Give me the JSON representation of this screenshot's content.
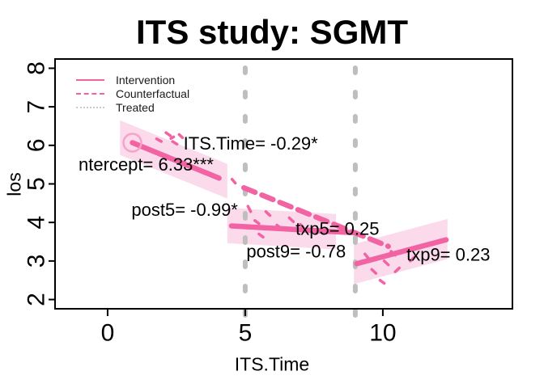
{
  "title": "ITS study: SGMT",
  "colors": {
    "line_pink": "#F263A4",
    "band_pink": "#FBD7E9",
    "circle_pink": "#F6A2C9",
    "vline_gray": "#BEBEBE",
    "legend_dotted_gray": "#C9C9C9",
    "text": "#000000",
    "axis": "#000000"
  },
  "legend": {
    "items": [
      {
        "label": "Intervention",
        "style": "solid",
        "color": "#F263A4"
      },
      {
        "label": "Counterfactual",
        "style": "dashed",
        "color": "#F263A4"
      },
      {
        "label": "Treated",
        "style": "dotted",
        "color": "#C9C9C9"
      }
    ]
  },
  "chart_data": {
    "type": "line",
    "title": "ITS study: SGMT",
    "xlabel": "ITS.Time",
    "ylabel": "los",
    "x_axis": {
      "ticks": [
        0,
        5,
        10
      ],
      "range": [
        -1.91,
        14.71
      ]
    },
    "y_axis": {
      "ticks": [
        2,
        3,
        4,
        5,
        6,
        7,
        8
      ],
      "range": [
        1.76,
        8.24
      ]
    },
    "interruptions": [
      5,
      9
    ],
    "model_coefficients": {
      "intercept": 6.33,
      "ITS.Time": -0.29,
      "post5": -0.99,
      "txp5": 0.25,
      "post9": -0.78,
      "txp9": 0.23
    },
    "fitted_segments": [
      {
        "name": "pre-intervention",
        "style": "solid",
        "x": [
          0.9,
          4.05
        ],
        "y": [
          6.07,
          5.15
        ]
      },
      {
        "name": "counterfactual",
        "style": "dashed",
        "x": [
          4.95,
          10.2
        ],
        "y": [
          4.9,
          3.38
        ]
      },
      {
        "name": "post5-segment",
        "style": "solid",
        "x": [
          4.5,
          9.0
        ],
        "y": [
          3.91,
          3.73
        ]
      },
      {
        "name": "post9-segment",
        "style": "solid",
        "x": [
          9.05,
          12.3
        ],
        "y": [
          2.93,
          3.55
        ]
      }
    ],
    "bands": [
      {
        "x": [
          0.45,
          4.35
        ],
        "y": [
          6.2,
          5.07
        ],
        "half_width": 0.45
      },
      {
        "x": [
          4.35,
          8.3
        ],
        "y": [
          3.92,
          3.76
        ],
        "half_width": 0.46
      },
      {
        "x": [
          8.95,
          12.35
        ],
        "y": [
          2.92,
          3.57
        ],
        "half_width": 0.52
      }
    ],
    "start_marker": {
      "x": 0.9,
      "y": 6.07,
      "shape": "open-circle"
    },
    "treated_marks": [
      [
        1.78,
        6.17,
        1.95,
        6.1
      ],
      [
        2.12,
        6.33,
        2.28,
        6.25
      ],
      [
        2.36,
        6.1,
        2.52,
        6.03
      ],
      [
        2.6,
        6.28,
        2.72,
        6.2
      ],
      [
        2.3,
        6.18,
        2.4,
        6.22
      ],
      [
        4.52,
        5.12,
        4.64,
        5.02
      ],
      [
        5.1,
        4.42,
        5.2,
        4.28
      ],
      [
        5.35,
        4.05,
        5.5,
        3.97
      ],
      [
        5.75,
        4.28,
        5.9,
        4.18
      ],
      [
        6.15,
        3.93,
        6.3,
        3.85
      ],
      [
        6.6,
        4.12,
        6.75,
        4.02
      ],
      [
        5.5,
        3.7,
        5.65,
        3.62
      ],
      [
        7.0,
        3.95,
        7.1,
        3.88
      ],
      [
        7.45,
        3.8,
        7.6,
        3.72
      ],
      [
        9.35,
        3.18,
        9.5,
        3.05
      ],
      [
        9.6,
        2.78,
        9.75,
        2.68
      ],
      [
        10.05,
        3.0,
        10.2,
        2.9
      ],
      [
        10.45,
        2.72,
        10.6,
        2.82
      ],
      [
        9.9,
        2.5,
        10.05,
        2.42
      ],
      [
        10.3,
        3.25,
        10.45,
        3.15
      ],
      [
        11.0,
        3.0,
        11.15,
        3.1
      ]
    ],
    "annotations": [
      {
        "id": "intercept",
        "text": "ntercept= 6.33***",
        "x": 1.4,
        "y": 5.5
      },
      {
        "id": "its-time",
        "text": "ITS.Time= -0.29*",
        "x": 5.2,
        "y": 6.05
      },
      {
        "id": "post5",
        "text": "post5= -0.99*",
        "x": 2.8,
        "y": 4.33
      },
      {
        "id": "txp5",
        "text": "txp5= 0.25",
        "x": 8.35,
        "y": 3.84
      },
      {
        "id": "post9",
        "text": "post9= -0.78",
        "x": 6.85,
        "y": 3.25
      },
      {
        "id": "txp9",
        "text": "txp9= 0.23",
        "x": 12.38,
        "y": 3.17
      }
    ]
  }
}
